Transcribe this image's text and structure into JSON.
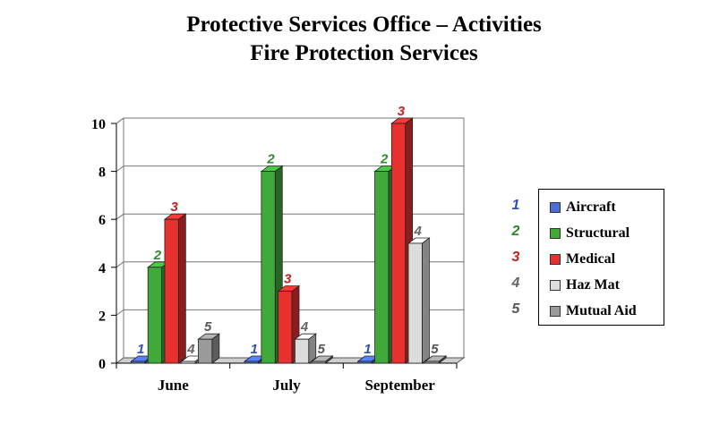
{
  "title": {
    "line1": "Protective Services Office – Activities",
    "line2": "Fire Protection Services"
  },
  "chart_data": {
    "type": "bar",
    "title": "Protective Services Office – Activities / Fire Protection Services",
    "categories": [
      "June",
      "July",
      "September"
    ],
    "ylim": [
      0,
      10
    ],
    "yticks": [
      0,
      2,
      4,
      6,
      8,
      10
    ],
    "grid": true,
    "legend_position": "right",
    "series": [
      {
        "id": "1",
        "name": "Aircraft",
        "color": "#4a6fd6",
        "label_color": "#2f4fb5",
        "values": [
          0,
          0,
          0
        ]
      },
      {
        "id": "2",
        "name": "Structural",
        "color": "#3faa3a",
        "label_color": "#2e8a2a",
        "values": [
          4,
          8,
          8
        ]
      },
      {
        "id": "3",
        "name": "Medical",
        "color": "#e8312e",
        "label_color": "#c8201e",
        "values": [
          6,
          3,
          10
        ]
      },
      {
        "id": "4",
        "name": "Haz Mat",
        "color": "#dcdcdc",
        "label_color": "#666666",
        "values": [
          0,
          1,
          5
        ]
      },
      {
        "id": "5",
        "name": "Mutual Aid",
        "color": "#9a9a9a",
        "label_color": "#555555",
        "values": [
          1,
          0,
          0
        ]
      }
    ]
  }
}
